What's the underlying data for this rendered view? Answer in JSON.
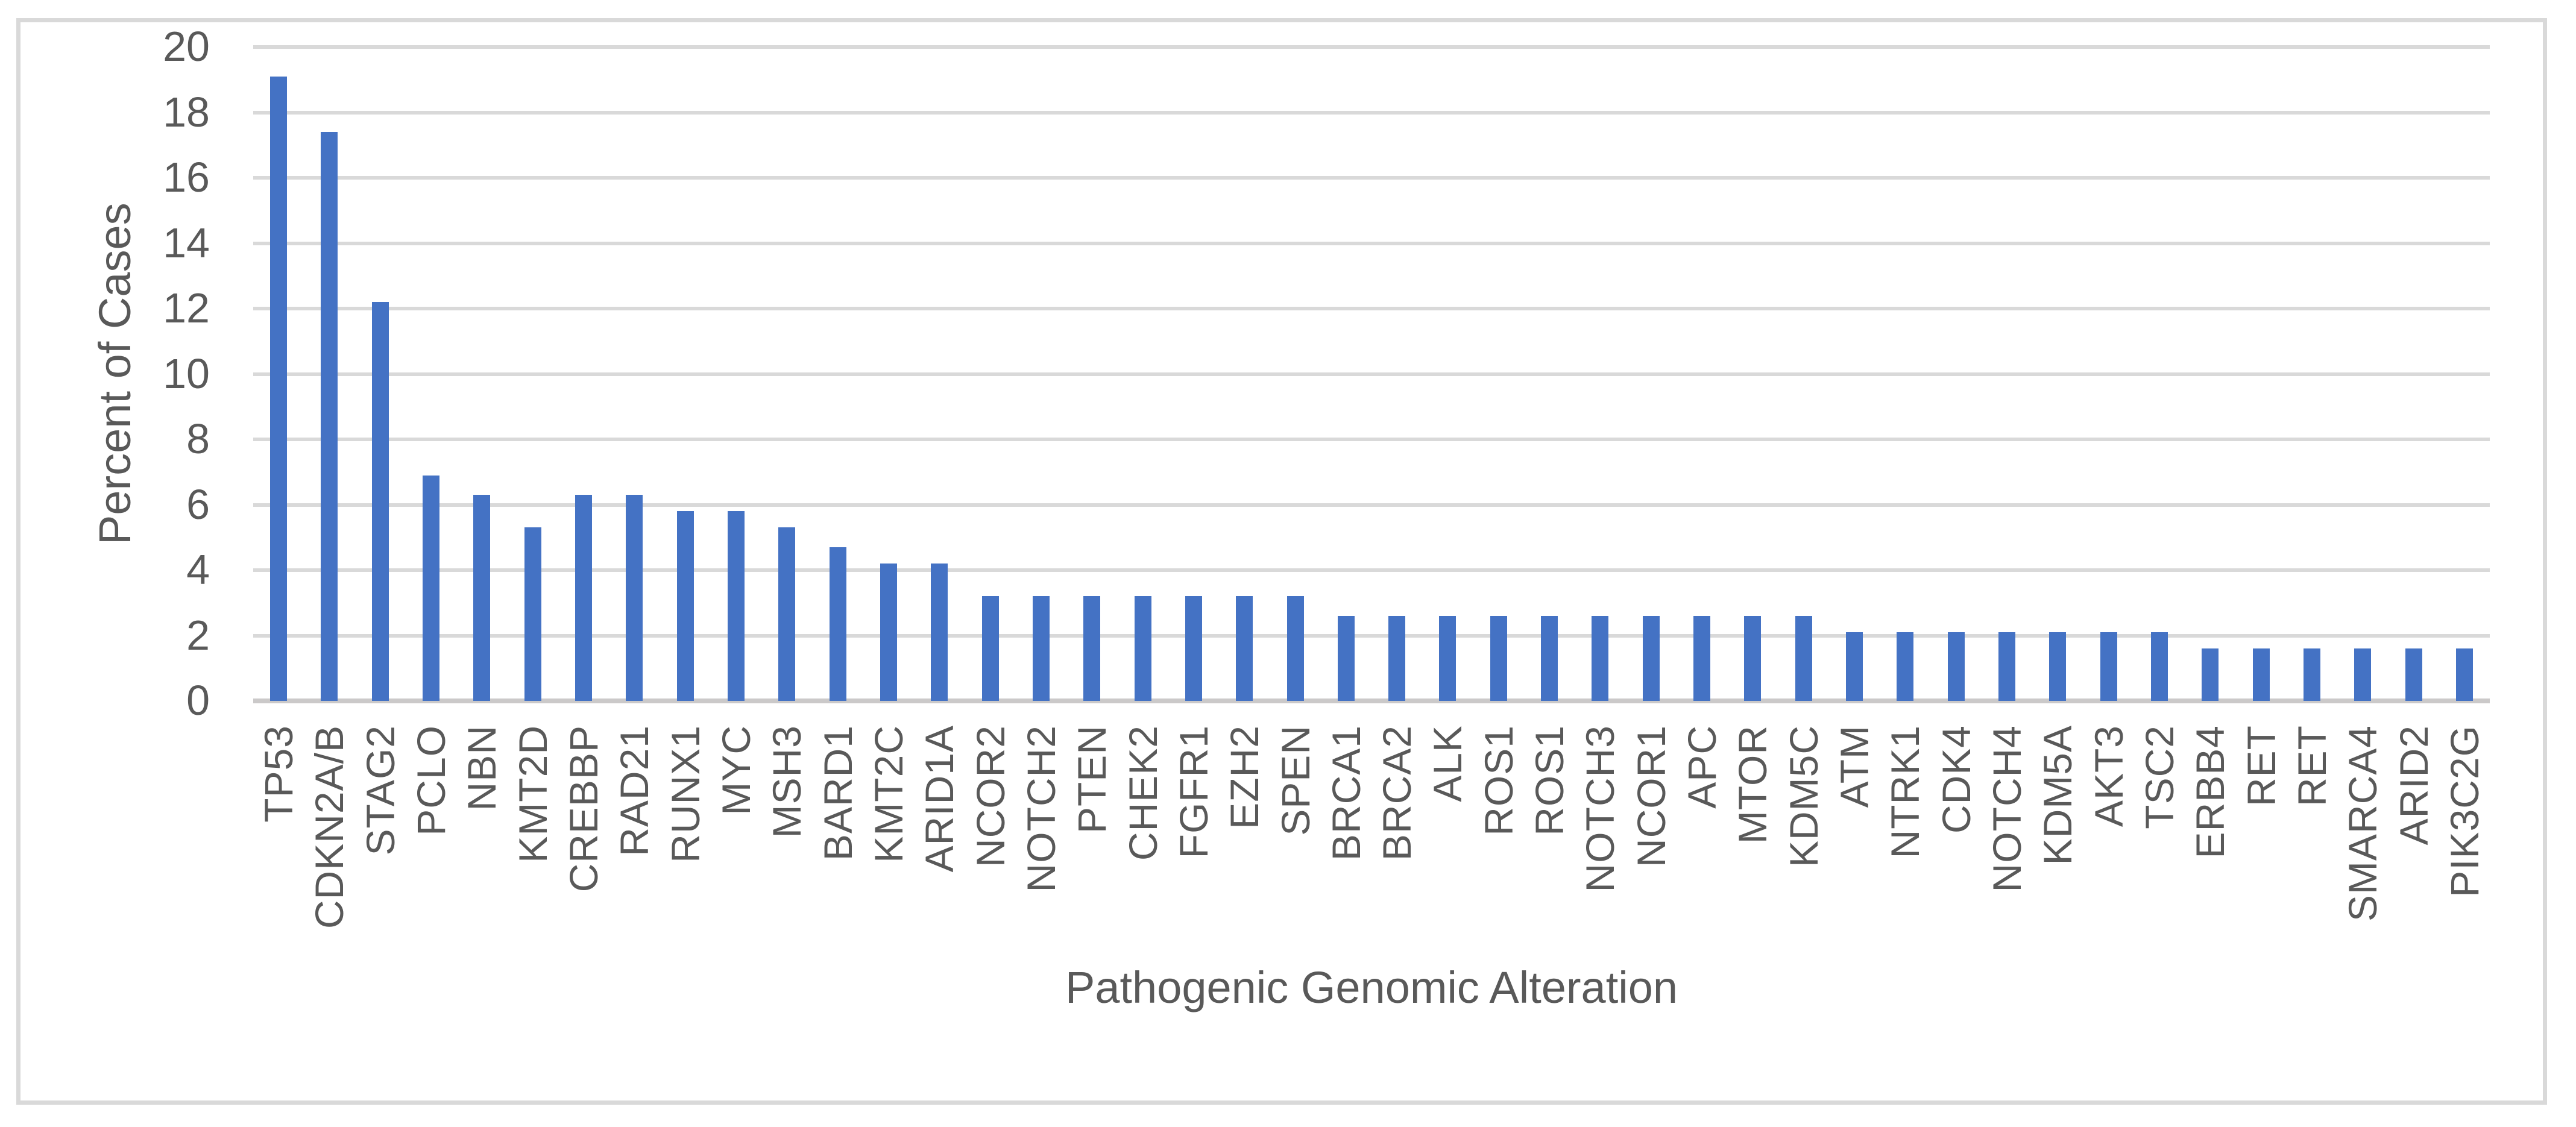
{
  "chart_data": {
    "type": "bar",
    "title": "",
    "xlabel": "Pathogenic Genomic Alteration",
    "ylabel": "Percent of Cases",
    "ylim": [
      0,
      20
    ],
    "yticks": [
      0,
      2,
      4,
      6,
      8,
      10,
      12,
      14,
      16,
      18,
      20
    ],
    "grid": "horizontal",
    "legend": "none",
    "categories": [
      "TP53",
      "CDKN2A/B",
      "STAG2",
      "PCLO",
      "NBN",
      "KMT2D",
      "CREBBP",
      "RAD21",
      "RUNX1",
      "MYC",
      "MSH3",
      "BARD1",
      "KMT2C",
      "ARID1A",
      "NCOR2",
      "NOTCH2",
      "PTEN",
      "CHEK2",
      "FGFR1",
      "EZH2",
      "SPEN",
      "BRCA1",
      "BRCA2",
      "ALK",
      "ROS1",
      "ROS1",
      "NOTCH3",
      "NCOR1",
      "APC",
      "MTOR",
      "KDM5C",
      "ATM",
      "NTRK1",
      "CDK4",
      "NOTCH4",
      "KDM5A",
      "AKT3",
      "TSC2",
      "ERBB4",
      "RET",
      "RET",
      "SMARCA4",
      "ARID2",
      "PIK3C2G"
    ],
    "values": [
      19.1,
      17.4,
      12.2,
      6.9,
      6.3,
      5.3,
      6.3,
      6.3,
      5.8,
      5.8,
      5.3,
      4.7,
      4.2,
      4.2,
      3.2,
      3.2,
      3.2,
      3.2,
      3.2,
      3.2,
      3.2,
      2.6,
      2.6,
      2.6,
      2.6,
      2.6,
      2.6,
      2.6,
      2.6,
      2.6,
      2.6,
      2.1,
      2.1,
      2.1,
      2.1,
      2.1,
      2.1,
      2.1,
      1.6,
      1.6,
      1.6,
      1.6,
      1.6,
      1.6
    ],
    "colors": {
      "bar": "#4472C4",
      "gridline": "#D9D9D9",
      "axis_line": "#CBC9C9",
      "text": "#595959",
      "frame_border": "#D9D9D9",
      "background": "#FFFFFF"
    }
  }
}
